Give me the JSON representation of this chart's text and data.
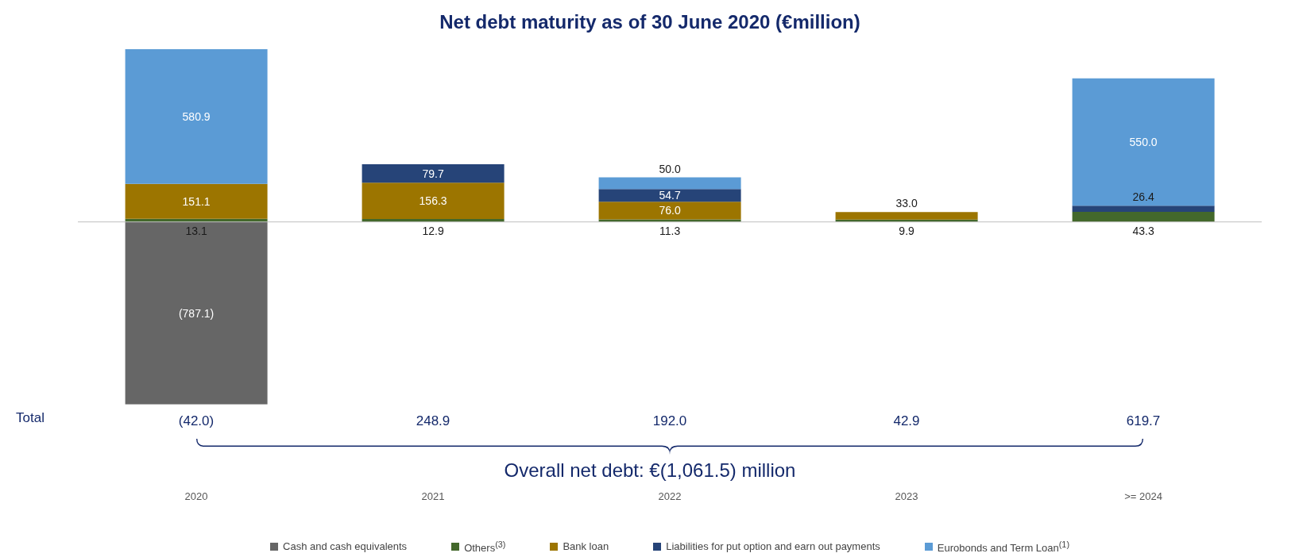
{
  "chart_data": {
    "type": "bar",
    "stacked": true,
    "title": "Net debt maturity as of 30 June 2020 (€million)",
    "categories": [
      "2020",
      "2021",
      "2022",
      "2023",
      ">= 2024"
    ],
    "series": [
      {
        "name": "Cash and cash equivalents",
        "color": "#666666",
        "values": [
          -787.1,
          null,
          null,
          null,
          null
        ],
        "value_labels": [
          "(787.1)",
          null,
          null,
          null,
          null
        ]
      },
      {
        "name": "Others$^{(3)}$",
        "color": "#43682b",
        "values": [
          13.1,
          12.9,
          11.3,
          9.9,
          43.3
        ],
        "value_labels": [
          "13.1",
          "12.9",
          "11.3",
          "9.9",
          "43.3"
        ]
      },
      {
        "name": "Bank loan",
        "color": "#9c7500",
        "values": [
          151.1,
          156.3,
          76.0,
          33.0,
          null
        ],
        "value_labels": [
          "151.1",
          "156.3",
          "76.0",
          "33.0",
          null
        ]
      },
      {
        "name": "Liabilities for put option and earn out payments",
        "color": "#264478",
        "values": [
          null,
          79.7,
          54.7,
          null,
          26.4
        ],
        "value_labels": [
          null,
          "79.7",
          "54.7",
          null,
          "26.4"
        ]
      },
      {
        "name": "Eurobonds and Term Loan$^{(1)}$",
        "color": "#5b9bd5",
        "values": [
          580.9,
          null,
          50.0,
          null,
          550.0
        ],
        "value_labels": [
          "580.9",
          null,
          "50.0",
          null,
          "550.0"
        ]
      }
    ],
    "annotations": [
      "Total",
      "Overall net debt: €(1,061.5) million",
      "(42.0)",
      "248.9",
      "192.0",
      "42.9",
      "619.7"
    ],
    "ref_lines": [
      {
        "axis": "y",
        "value": 0,
        "color": "#bfbfbf"
      }
    ],
    "legend": "bottom",
    "grid": false
  }
}
